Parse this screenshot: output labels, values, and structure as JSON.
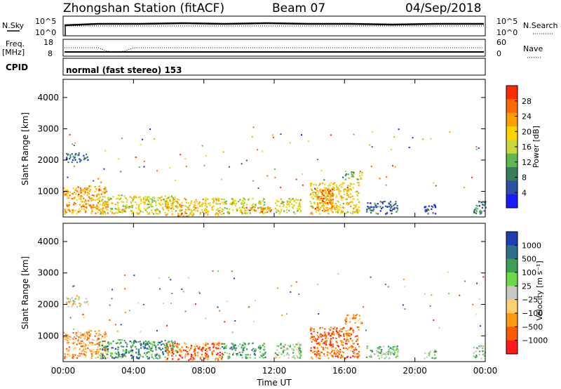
{
  "header": {
    "station": "Zhongshan Station (fitACF)",
    "beam": "Beam 07",
    "date": "04/Sep/2018"
  },
  "strip": {
    "nsky_label": "N.Sky",
    "nsearch_label": "N.Search",
    "freq_label": "Freq.",
    "freq_unit": "[MHz]",
    "nave_label": "Nave",
    "cpid_label": "CPID",
    "mode_text": "normal (fast stereo) 153",
    "noise_ticks": [
      "10^5",
      "10^0"
    ],
    "freq_ticks": [
      "18",
      "8"
    ],
    "nave_ticks": [
      "60",
      "0"
    ]
  },
  "colors": {
    "power": [
      "#1a1aff",
      "#2f4fa6",
      "#3a7d5c",
      "#5fb84f",
      "#c8d83a",
      "#ffd400",
      "#ffa000",
      "#ff6a00",
      "#ff2a00"
    ],
    "velocity": [
      "#ff1a1a",
      "#ff5a00",
      "#ff9a10",
      "#ffd070",
      "#c8c8c8",
      "#6cd94a",
      "#3f9f55",
      "#2f6f8a",
      "#1f3fb0"
    ]
  },
  "chart_data": [
    {
      "type": "heatmap",
      "name": "power",
      "ylabel": "Slant Range [km]",
      "xlabel": "",
      "x_ticks": [
        "00:00",
        "04:00",
        "08:00",
        "12:00",
        "16:00",
        "20:00",
        "00:00"
      ],
      "xlim_hours": [
        0,
        24
      ],
      "ylim": [
        180,
        4580
      ],
      "y_ticks": [
        1000,
        2000,
        3000,
        4000
      ],
      "colorbar_label": "Power [dB]",
      "colorbar_ticks": [
        "28",
        "24",
        "20",
        "16",
        "12",
        "8",
        "4"
      ],
      "colorbar_range": [
        0,
        32
      ],
      "regions": [
        {
          "t0": 0.0,
          "t1": 2.5,
          "r0": 300,
          "r1": 1200,
          "level": 0.72
        },
        {
          "t0": 0.1,
          "t1": 1.4,
          "r0": 1950,
          "r1": 2250,
          "level": 0.18
        },
        {
          "t0": 2.0,
          "t1": 6.5,
          "r0": 300,
          "r1": 900,
          "level": 0.55
        },
        {
          "t0": 5.8,
          "t1": 9.0,
          "r0": 250,
          "r1": 800,
          "level": 0.62
        },
        {
          "t0": 6.5,
          "t1": 7.2,
          "r0": 220,
          "r1": 350,
          "level": 0.85
        },
        {
          "t0": 9.0,
          "t1": 11.5,
          "r0": 300,
          "r1": 800,
          "level": 0.5
        },
        {
          "t0": 10.0,
          "t1": 11.8,
          "r0": 350,
          "r1": 520,
          "level": 0.82
        },
        {
          "t0": 12.0,
          "t1": 13.5,
          "r0": 300,
          "r1": 800,
          "level": 0.55
        },
        {
          "t0": 14.0,
          "t1": 16.8,
          "r0": 300,
          "r1": 1300,
          "level": 0.6
        },
        {
          "t0": 14.3,
          "t1": 15.3,
          "r0": 400,
          "r1": 1100,
          "level": 0.8
        },
        {
          "t0": 16.0,
          "t1": 17.0,
          "r0": 1400,
          "r1": 1700,
          "level": 0.45
        },
        {
          "t0": 17.2,
          "t1": 19.0,
          "r0": 300,
          "r1": 700,
          "level": 0.2
        },
        {
          "t0": 20.5,
          "t1": 21.2,
          "r0": 300,
          "r1": 600,
          "level": 0.15
        },
        {
          "t0": 23.3,
          "t1": 24.0,
          "r0": 300,
          "r1": 700,
          "level": 0.25
        }
      ]
    },
    {
      "type": "heatmap",
      "name": "velocity",
      "ylabel": "Slant Range [km]",
      "xlabel": "Time UT",
      "x_ticks": [
        "00:00",
        "04:00",
        "08:00",
        "12:00",
        "16:00",
        "20:00",
        "00:00"
      ],
      "xlim_hours": [
        0,
        24
      ],
      "ylim": [
        180,
        4580
      ],
      "y_ticks": [
        1000,
        2000,
        3000,
        4000
      ],
      "colorbar_label": "Velocity [m s⁻¹]",
      "colorbar_ticks": [
        "1000",
        "500",
        "100",
        "25",
        "−25",
        "−100",
        "−500",
        "−1000"
      ],
      "colorbar_range": [
        -1500,
        1500
      ],
      "regions": [
        {
          "t0": 0.0,
          "t1": 2.5,
          "r0": 300,
          "r1": 1200,
          "level": 0.3
        },
        {
          "t0": 0.1,
          "t1": 1.4,
          "r0": 1950,
          "r1": 2250,
          "level": 0.44
        },
        {
          "t0": 2.0,
          "t1": 6.5,
          "r0": 300,
          "r1": 900,
          "level": 0.75
        },
        {
          "t0": 5.8,
          "t1": 9.0,
          "r0": 250,
          "r1": 800,
          "level": 0.2
        },
        {
          "t0": 9.0,
          "t1": 11.5,
          "r0": 300,
          "r1": 800,
          "level": 0.7
        },
        {
          "t0": 12.0,
          "t1": 13.5,
          "r0": 300,
          "r1": 800,
          "level": 0.6
        },
        {
          "t0": 14.0,
          "t1": 16.8,
          "r0": 300,
          "r1": 1300,
          "level": 0.2
        },
        {
          "t0": 16.0,
          "t1": 17.0,
          "r0": 1400,
          "r1": 1700,
          "level": 0.25
        },
        {
          "t0": 17.2,
          "t1": 19.0,
          "r0": 300,
          "r1": 700,
          "level": 0.62
        },
        {
          "t0": 20.5,
          "t1": 21.2,
          "r0": 300,
          "r1": 600,
          "level": 0.62
        },
        {
          "t0": 23.3,
          "t1": 24.0,
          "r0": 300,
          "r1": 700,
          "level": 0.62
        }
      ]
    }
  ]
}
